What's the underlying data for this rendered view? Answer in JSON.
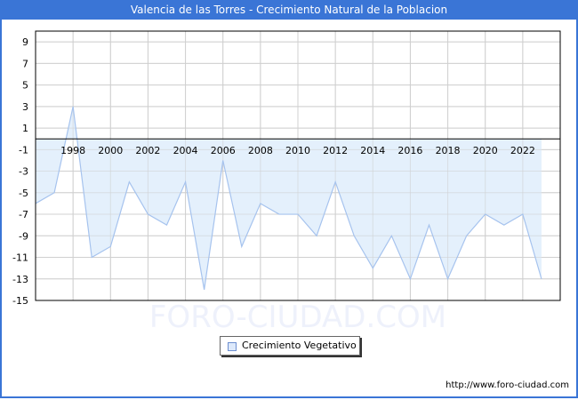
{
  "header": {
    "title": "Valencia de las Torres - Crecimiento Natural de la Poblacion"
  },
  "watermark": "FORO-CIUDAD.COM",
  "footer": {
    "url": "http://www.foro-ciudad.com"
  },
  "legend": {
    "label": "Crecimiento Vegetativo",
    "swatch_color": "#dde9fb"
  },
  "colors": {
    "header_bg": "#3a75d6",
    "fill": "#e1eefc",
    "line": "#a6c3ee",
    "grid": "#d0d0d0"
  },
  "chart_data": {
    "type": "area",
    "title": "Valencia de las Torres - Crecimiento Natural de la Poblacion",
    "xlabel": "",
    "ylabel": "",
    "x": [
      1996,
      1997,
      1998,
      1999,
      2000,
      2001,
      2002,
      2003,
      2004,
      2005,
      2006,
      2007,
      2008,
      2009,
      2010,
      2011,
      2012,
      2013,
      2014,
      2015,
      2016,
      2017,
      2018,
      2019,
      2020,
      2021,
      2022,
      2023
    ],
    "series": [
      {
        "name": "Crecimiento Vegetativo",
        "values": [
          -6,
          -5,
          3,
          -11,
          -10,
          -4,
          -7,
          -8,
          -4,
          -14,
          -2,
          -10,
          -6,
          -7,
          -7,
          -9,
          -4,
          -9,
          -12,
          -9,
          -13,
          -8,
          -13,
          -9,
          -7,
          -8,
          -7,
          -13
        ]
      }
    ],
    "xticks": [
      "1998",
      "2000",
      "2002",
      "2004",
      "2006",
      "2008",
      "2010",
      "2012",
      "2014",
      "2016",
      "2018",
      "2020",
      "2022"
    ],
    "yticks": [
      "9",
      "7",
      "5",
      "3",
      "1",
      "-1",
      "-3",
      "-5",
      "-7",
      "-9",
      "-11",
      "-13",
      "-15"
    ],
    "xlim": [
      1996,
      2024
    ],
    "ylim": [
      -15,
      10
    ],
    "grid": true,
    "legend_position": "bottom-center"
  }
}
